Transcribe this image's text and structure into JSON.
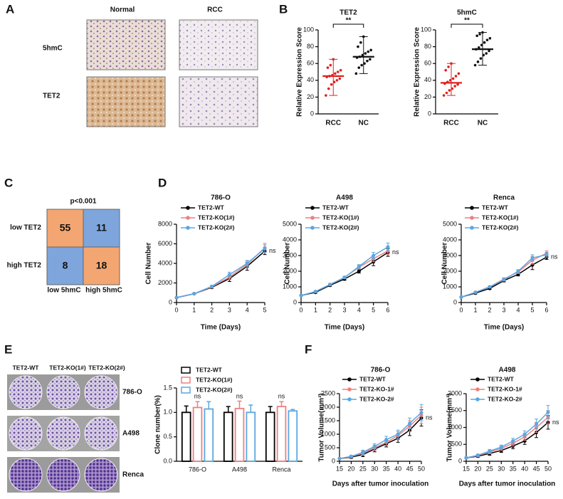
{
  "panel_letters": [
    "A",
    "B",
    "C",
    "D",
    "E",
    "F"
  ],
  "panel_a": {
    "columns": [
      "Normal",
      "RCC"
    ],
    "rows": [
      "5hmC",
      "TET2"
    ]
  },
  "panel_c": {
    "title": "p<0.001",
    "rows": [
      "low TET2",
      "high TET2"
    ],
    "columns": [
      "low 5hmC",
      "high 5hmC"
    ],
    "cells": [
      [
        55,
        11
      ],
      [
        8,
        18
      ]
    ],
    "cell_colors": [
      [
        "#f3a672",
        "#7ea5dc"
      ],
      [
        "#7ea5dc",
        "#f3a672"
      ]
    ]
  },
  "panel_e": {
    "columns": [
      "TET2-WT",
      "TET2-KO(1#)",
      "TET2-KO(2#)"
    ],
    "rows": [
      "786-O",
      "A498",
      "Renca"
    ]
  },
  "chart_data": [
    {
      "type": "strip",
      "title": "TET2",
      "ylabel": "Relative Expression Score",
      "categories": [
        "RCC",
        "NC"
      ],
      "ylim": [
        0,
        100
      ],
      "yticks": [
        0,
        20,
        40,
        60,
        80,
        100
      ],
      "annotation": "**",
      "groups": [
        {
          "color": "#e02020",
          "points": [
            22,
            30,
            35,
            38,
            40,
            42,
            44,
            45,
            46,
            48,
            50,
            52,
            55,
            58,
            65
          ],
          "mean": 45,
          "range": [
            22,
            65
          ]
        },
        {
          "color": "#111111",
          "points": [
            48,
            55,
            58,
            60,
            63,
            65,
            67,
            68,
            70,
            72,
            74,
            76,
            80,
            85,
            92
          ],
          "mean": 68,
          "range": [
            48,
            92
          ]
        }
      ]
    },
    {
      "type": "strip",
      "title": "5hmC",
      "ylabel": "Relative Expression Score",
      "categories": [
        "RCC",
        "NC"
      ],
      "ylim": [
        0,
        100
      ],
      "yticks": [
        0,
        20,
        40,
        60,
        80,
        100
      ],
      "annotation": "**",
      "groups": [
        {
          "color": "#e02020",
          "points": [
            22,
            25,
            28,
            30,
            33,
            35,
            36,
            38,
            40,
            42,
            45,
            48,
            52,
            56,
            60
          ],
          "mean": 37,
          "range": [
            22,
            60
          ]
        },
        {
          "color": "#111111",
          "points": [
            58,
            62,
            66,
            70,
            72,
            75,
            77,
            79,
            82,
            85,
            88,
            90,
            93,
            95,
            97
          ],
          "mean": 77,
          "range": [
            58,
            97
          ]
        }
      ]
    },
    {
      "type": "line",
      "title": "786-O",
      "xlabel": "Time (Days)",
      "ylabel": "Cell Number",
      "annotation": "ns",
      "x": [
        0,
        1,
        2,
        3,
        4,
        5
      ],
      "xlim": [
        0,
        5
      ],
      "xticks": [
        0,
        1,
        2,
        3,
        4,
        5
      ],
      "ylim": [
        0,
        8000
      ],
      "yticks": [
        0,
        2000,
        4000,
        6000,
        8000
      ],
      "series": [
        {
          "name": "TET2-WT",
          "color": "#000000",
          "values": [
            500,
            900,
            1550,
            2450,
            3700,
            5250
          ],
          "errors": [
            50,
            60,
            100,
            300,
            400,
            350
          ]
        },
        {
          "name": "TET2-KO(1#)",
          "color": "#ee7f80",
          "values": [
            500,
            900,
            1600,
            2600,
            3900,
            5600
          ],
          "errors": [
            50,
            60,
            100,
            250,
            350,
            450
          ]
        },
        {
          "name": "TET2-KO(2#)",
          "color": "#5aa7e2",
          "values": [
            500,
            900,
            1650,
            2850,
            4000,
            5500
          ],
          "errors": [
            50,
            60,
            100,
            250,
            300,
            400
          ]
        }
      ]
    },
    {
      "type": "line",
      "title": "A498",
      "xlabel": "Time (Days)",
      "ylabel": "Cell Number",
      "annotation": "ns",
      "x": [
        0,
        1,
        2,
        3,
        4,
        5,
        6
      ],
      "xlim": [
        0,
        6
      ],
      "xticks": [
        0,
        1,
        2,
        3,
        4,
        5,
        6
      ],
      "ylim": [
        0,
        5000
      ],
      "yticks": [
        0,
        1000,
        2000,
        3000,
        4000,
        5000
      ],
      "series": [
        {
          "name": "TET2-WT",
          "color": "#000000",
          "values": [
            450,
            650,
            1100,
            1500,
            2000,
            2600,
            3200
          ],
          "errors": [
            40,
            50,
            60,
            80,
            120,
            250,
            250
          ]
        },
        {
          "name": "TET2-KO(1#)",
          "color": "#ee7f80",
          "values": [
            450,
            700,
            1150,
            1600,
            2250,
            2800,
            3300
          ],
          "errors": [
            40,
            50,
            60,
            80,
            120,
            200,
            250
          ]
        },
        {
          "name": "TET2-KO(2#)",
          "color": "#5aa7e2",
          "values": [
            450,
            700,
            1150,
            1600,
            2300,
            3000,
            3550
          ],
          "errors": [
            40,
            50,
            60,
            80,
            120,
            200,
            250
          ]
        }
      ]
    },
    {
      "type": "line",
      "title": "Renca",
      "xlabel": "Time (Days)",
      "ylabel": "Cell Number",
      "annotation": "ns",
      "x": [
        0,
        1,
        2,
        3,
        4,
        5,
        6
      ],
      "xlim": [
        0,
        6
      ],
      "xticks": [
        0,
        1,
        2,
        3,
        4,
        5,
        6
      ],
      "ylim": [
        0,
        5000
      ],
      "yticks": [
        0,
        1000,
        2000,
        3000,
        4000,
        5000
      ],
      "series": [
        {
          "name": "TET2-WT",
          "color": "#000000",
          "values": [
            350,
            600,
            900,
            1400,
            1800,
            2400,
            2900
          ],
          "errors": [
            40,
            50,
            60,
            80,
            100,
            300,
            150
          ]
        },
        {
          "name": "TET2-KO(1#)",
          "color": "#ee7f80",
          "values": [
            350,
            650,
            1000,
            1500,
            1950,
            2700,
            3150
          ],
          "errors": [
            40,
            50,
            60,
            80,
            100,
            250,
            150
          ]
        },
        {
          "name": "TET2-KO(2#)",
          "color": "#5aa7e2",
          "values": [
            350,
            650,
            1000,
            1450,
            2000,
            2850,
            3050
          ],
          "errors": [
            40,
            50,
            60,
            80,
            100,
            200,
            150
          ]
        }
      ]
    },
    {
      "type": "bar",
      "ylabel": "Clone number(%)",
      "categories": [
        "786-O",
        "A498",
        "Renca"
      ],
      "annotations": [
        "ns",
        "ns",
        "ns"
      ],
      "ylim": [
        0,
        1.5
      ],
      "yticks": [
        {
          "value": 0,
          "label": "0.0"
        },
        {
          "value": 0.5,
          "label": "0.5"
        },
        {
          "value": 1,
          "label": "1.0"
        },
        {
          "value": 1.5,
          "label": "1.5"
        }
      ],
      "series": [
        {
          "name": "TET2-WT",
          "color": "#000000",
          "values": [
            1,
            1,
            1
          ],
          "errors": [
            0.13,
            0.12,
            0.12
          ]
        },
        {
          "name": "TET2-KO(1#)",
          "color": "#ee7f80",
          "values": [
            1.1,
            1.08,
            1.12
          ],
          "errors": [
            0.12,
            0.15,
            0.1
          ]
        },
        {
          "name": "TET2-KO(2#)",
          "color": "#5aa7e2",
          "values": [
            1.07,
            1,
            1.03
          ],
          "errors": [
            0.15,
            0.15,
            0.03
          ]
        }
      ]
    },
    {
      "type": "line",
      "title": "786-O",
      "xlabel": "Days after tumor inoculation",
      "ylabel": "Tumor Volume(mm³)",
      "annotation": "ns",
      "x": [
        15,
        20,
        25,
        30,
        35,
        40,
        45,
        50
      ],
      "xlim": [
        15,
        50
      ],
      "xticks": [
        15,
        20,
        25,
        30,
        35,
        40,
        45,
        50
      ],
      "ylim": [
        0,
        2500
      ],
      "yticks": [
        0,
        500,
        1000,
        1500,
        2000,
        2500
      ],
      "series": [
        {
          "name": "TET2-WT",
          "color": "#000000",
          "values": [
            100,
            150,
            250,
            450,
            650,
            850,
            1150,
            1600
          ],
          "errors": [
            20,
            40,
            80,
            100,
            120,
            150,
            200,
            300
          ]
        },
        {
          "name": "TET2-KO-1#",
          "color": "#ee7f80",
          "values": [
            100,
            170,
            300,
            500,
            700,
            950,
            1300,
            1700
          ],
          "errors": [
            20,
            40,
            80,
            100,
            120,
            150,
            200,
            300
          ]
        },
        {
          "name": "TET2-KO-2#",
          "color": "#5aa7e2",
          "values": [
            100,
            180,
            330,
            550,
            800,
            1000,
            1400,
            1800
          ],
          "errors": [
            20,
            40,
            80,
            100,
            120,
            150,
            200,
            300
          ]
        }
      ]
    },
    {
      "type": "line",
      "title": "A498",
      "xlabel": "Days after tumor inoculation",
      "ylabel": "Tumor Volume(mm³)",
      "annotation": "ns",
      "x": [
        15,
        20,
        25,
        30,
        35,
        40,
        45,
        50
      ],
      "xlim": [
        15,
        50
      ],
      "xticks": [
        15,
        20,
        25,
        30,
        35,
        40,
        45,
        50
      ],
      "ylim": [
        0,
        2000
      ],
      "yticks": [
        0,
        500,
        1000,
        1500,
        2000
      ],
      "series": [
        {
          "name": "TET2-WT",
          "color": "#000000",
          "values": [
            100,
            150,
            230,
            320,
            450,
            600,
            850,
            1150
          ],
          "errors": [
            20,
            30,
            50,
            60,
            80,
            100,
            150,
            200
          ]
        },
        {
          "name": "TET2-KO-1#",
          "color": "#ee7f80",
          "values": [
            100,
            170,
            270,
            380,
            530,
            720,
            1000,
            1300
          ],
          "errors": [
            20,
            30,
            50,
            60,
            80,
            100,
            150,
            200
          ]
        },
        {
          "name": "TET2-KO-2#",
          "color": "#5aa7e2",
          "values": [
            100,
            180,
            300,
            420,
            600,
            800,
            1100,
            1450
          ],
          "errors": [
            20,
            30,
            50,
            60,
            80,
            100,
            150,
            200
          ]
        }
      ]
    }
  ]
}
